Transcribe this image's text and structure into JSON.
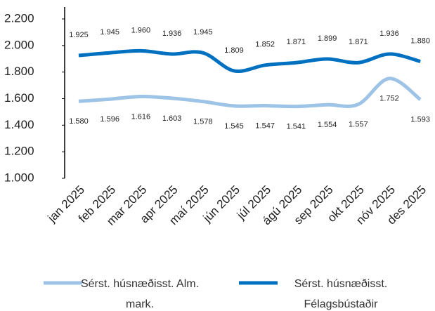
{
  "chart_data": {
    "type": "line",
    "categories": [
      "jan 2025",
      "feb 2025",
      "mar 2025",
      "apr 2025",
      "maí 2025",
      "jún 2025",
      "júl 2025",
      "ágú 2025",
      "sep 2025",
      "okt 2025",
      "nóv 2025",
      "des 2025"
    ],
    "series": [
      {
        "name": "Sérst. húsnæðisst. Alm. mark.",
        "color": "#9dc3e6",
        "values": [
          1580,
          1596,
          1616,
          1603,
          1578,
          1545,
          1547,
          1541,
          1554,
          1557,
          1752,
          1593
        ],
        "value_labels": [
          "1.580",
          "1.596",
          "1.616",
          "1.603",
          "1.578",
          "1.545",
          "1.547",
          "1.541",
          "1.554",
          "1.557",
          "1.752",
          "1.593"
        ]
      },
      {
        "name": "Sérst. húsnæðisst. Félagsbústaðir",
        "color": "#0070c0",
        "values": [
          1925,
          1945,
          1960,
          1936,
          1945,
          1809,
          1852,
          1871,
          1899,
          1871,
          1936,
          1880
        ],
        "value_labels": [
          "1.925",
          "1.945",
          "1.960",
          "1.936",
          "1.945",
          "1.809",
          "1.852",
          "1.871",
          "1.899",
          "1.871",
          "1.936",
          "1.880"
        ]
      }
    ],
    "ylim": [
      1000,
      2200
    ],
    "yticks": [
      {
        "value": 1000,
        "label": "1.000"
      },
      {
        "value": 1200,
        "label": "1.200"
      },
      {
        "value": 1400,
        "label": "1.400"
      },
      {
        "value": 1600,
        "label": "1.600"
      },
      {
        "value": 1800,
        "label": "1.800"
      },
      {
        "value": 2000,
        "label": "2.000"
      },
      {
        "value": 2200,
        "label": "2.200"
      }
    ],
    "grid": false,
    "legend": "bottom"
  }
}
